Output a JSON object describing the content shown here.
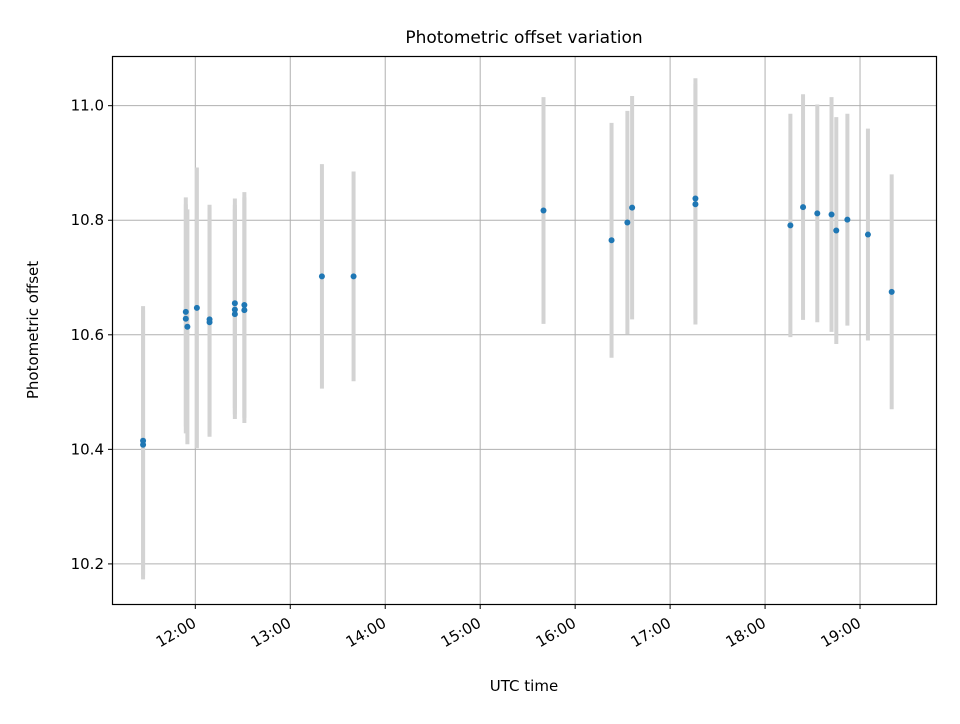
{
  "chart_data": {
    "type": "scatter",
    "title": "Photometric offset variation",
    "xlabel": "UTC time",
    "ylabel": "Photometric offset",
    "x_ticks": [
      "12:00",
      "13:00",
      "14:00",
      "15:00",
      "16:00",
      "17:00",
      "18:00",
      "19:00"
    ],
    "y_ticks": [
      "10.2",
      "10.4",
      "10.6",
      "10.8",
      "11.0"
    ],
    "xlim": [
      "11:08",
      "19:48"
    ],
    "ylim": [
      10.13,
      11.085
    ],
    "grid": true,
    "marker_color": "#1f77b4",
    "errorbar_color": "#d3d3d3",
    "points": [
      {
        "x": "11:27",
        "y": 10.408,
        "yerr": 0.235
      },
      {
        "x": "11:27",
        "y": 10.415,
        "yerr": 0.235
      },
      {
        "x": "11:54",
        "y": 10.64,
        "yerr": 0.2
      },
      {
        "x": "11:54",
        "y": 10.628,
        "yerr": 0.2
      },
      {
        "x": "11:55",
        "y": 10.614,
        "yerr": 0.205
      },
      {
        "x": "12:01",
        "y": 10.647,
        "yerr": 0.245
      },
      {
        "x": "12:09",
        "y": 10.622,
        "yerr": 0.2
      },
      {
        "x": "12:09",
        "y": 10.627,
        "yerr": 0.2
      },
      {
        "x": "12:25",
        "y": 10.655,
        "yerr": 0.183
      },
      {
        "x": "12:25",
        "y": 10.644,
        "yerr": 0.183
      },
      {
        "x": "12:25",
        "y": 10.636,
        "yerr": 0.183
      },
      {
        "x": "12:31",
        "y": 10.652,
        "yerr": 0.197
      },
      {
        "x": "12:31",
        "y": 10.643,
        "yerr": 0.197
      },
      {
        "x": "13:20",
        "y": 10.702,
        "yerr": 0.196
      },
      {
        "x": "13:40",
        "y": 10.702,
        "yerr": 0.183
      },
      {
        "x": "15:40",
        "y": 10.817,
        "yerr": 0.198
      },
      {
        "x": "16:23",
        "y": 10.765,
        "yerr": 0.205
      },
      {
        "x": "16:33",
        "y": 10.796,
        "yerr": 0.195
      },
      {
        "x": "16:36",
        "y": 10.822,
        "yerr": 0.195
      },
      {
        "x": "17:16",
        "y": 10.838,
        "yerr": 0.21
      },
      {
        "x": "17:16",
        "y": 10.828,
        "yerr": 0.21
      },
      {
        "x": "18:16",
        "y": 10.791,
        "yerr": 0.195
      },
      {
        "x": "18:24",
        "y": 10.823,
        "yerr": 0.197
      },
      {
        "x": "18:33",
        "y": 10.812,
        "yerr": 0.19
      },
      {
        "x": "18:42",
        "y": 10.81,
        "yerr": 0.205
      },
      {
        "x": "18:45",
        "y": 10.782,
        "yerr": 0.198
      },
      {
        "x": "18:52",
        "y": 10.801,
        "yerr": 0.185
      },
      {
        "x": "19:05",
        "y": 10.775,
        "yerr": 0.185
      },
      {
        "x": "19:20",
        "y": 10.675,
        "yerr": 0.205
      }
    ]
  }
}
